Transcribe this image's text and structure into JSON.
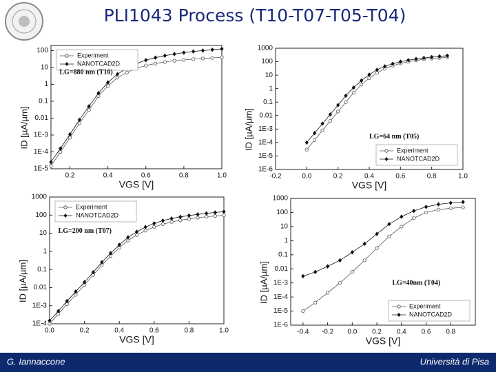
{
  "slide": {
    "title": "PLI1043 Process  (T10-T07-T05-T04)",
    "footer_left": "G. Iannaccone",
    "footer_right": "Università di Pisa"
  },
  "chart_data": [
    {
      "type": "line",
      "ylog": true,
      "ylabel": "ID [µA/µm]",
      "xlabel": "VGS [V]",
      "annotation": "LG=880 nm (T10)",
      "legend": "upper left",
      "xlim": [
        0.1,
        1.0
      ],
      "xticks": [
        0.2,
        0.4,
        0.6,
        0.8,
        {
          "value": 1.0,
          "label": "1.0"
        }
      ],
      "ylim": [
        1e-05,
        200
      ],
      "yticks": [
        {
          "value": 1e-05,
          "label": "1E-5"
        },
        {
          "value": 0.0001,
          "label": "1E-4"
        },
        {
          "value": 0.001,
          "label": "1E-3"
        },
        0.01,
        0.1,
        1,
        10,
        100
      ],
      "x": [
        0.1,
        0.15,
        0.2,
        0.25,
        0.3,
        0.35,
        0.4,
        0.45,
        0.5,
        0.55,
        0.6,
        0.65,
        0.7,
        0.75,
        0.8,
        0.85,
        0.9,
        0.95,
        1.0
      ],
      "series": [
        {
          "name": "Experiment",
          "color": "#555555",
          "marker": "open-circle",
          "values": [
            1.5e-05,
            0.0001,
            0.0007,
            0.005,
            0.03,
            0.2,
            0.8,
            2.5,
            5,
            9,
            13,
            17,
            21,
            25,
            28,
            31,
            34,
            37,
            40
          ]
        },
        {
          "name": "NANOTCAD2D",
          "color": "#111111",
          "marker": "diamond",
          "values": [
            2.5e-05,
            0.00016,
            0.0011,
            0.008,
            0.05,
            0.3,
            1.3,
            4,
            9,
            17,
            27,
            38,
            50,
            62,
            75,
            88,
            100,
            112,
            125
          ]
        }
      ]
    },
    {
      "type": "line",
      "ylog": true,
      "ylabel": "ID [µA/µm]",
      "xlabel": "VGS [V]",
      "annotation": "LG=64 nm (T05)",
      "legend": "lower right",
      "xlim": [
        -0.2,
        1.0
      ],
      "xticks": [
        -0.2,
        {
          "value": 0,
          "label": "0.0"
        },
        0.2,
        0.4,
        0.6,
        0.8,
        {
          "value": 1.0,
          "label": "1.0"
        }
      ],
      "ylim": [
        1e-06,
        1000
      ],
      "yticks": [
        {
          "value": 1e-06,
          "label": "1E-6"
        },
        {
          "value": 1e-05,
          "label": "1E-5"
        },
        {
          "value": 0.0001,
          "label": "1E-4"
        },
        {
          "value": 0.001,
          "label": "1E-3"
        },
        0.01,
        0.1,
        1,
        10,
        100,
        1000
      ],
      "x": [
        0.0,
        0.05,
        0.1,
        0.15,
        0.2,
        0.25,
        0.3,
        0.35,
        0.4,
        0.45,
        0.5,
        0.55,
        0.6,
        0.65,
        0.7,
        0.75,
        0.8,
        0.85,
        0.9
      ],
      "series": [
        {
          "name": "Experiment",
          "color": "#555555",
          "marker": "open-circle",
          "values": [
            3e-05,
            0.00015,
            0.0008,
            0.004,
            0.02,
            0.1,
            0.5,
            2,
            6,
            15,
            30,
            50,
            75,
            100,
            125,
            150,
            170,
            190,
            210
          ]
        },
        {
          "name": "NANOTCAD2D",
          "color": "#111111",
          "marker": "diamond",
          "values": [
            0.0001,
            0.0005,
            0.0025,
            0.012,
            0.06,
            0.3,
            1.2,
            4,
            11,
            25,
            45,
            70,
            100,
            130,
            160,
            190,
            220,
            250,
            280
          ]
        }
      ]
    },
    {
      "type": "line",
      "ylog": true,
      "ylabel": "ID [µA/µm]",
      "xlabel": "VGS [V]",
      "annotation": "LG=200 nm (T07)",
      "legend": "upper left",
      "xlim": [
        0.0,
        1.0
      ],
      "xticks": [
        {
          "value": 0,
          "label": "0.0"
        },
        0.2,
        0.4,
        0.6,
        0.8,
        {
          "value": 1.0,
          "label": "1.0"
        }
      ],
      "ylim": [
        0.0001,
        1000
      ],
      "yticks": [
        {
          "value": 0.0001,
          "label": "1E-4"
        },
        {
          "value": 0.001,
          "label": "1E-3"
        },
        0.01,
        0.1,
        1,
        10,
        100,
        1000
      ],
      "x": [
        0.0,
        0.05,
        0.1,
        0.15,
        0.2,
        0.25,
        0.3,
        0.35,
        0.4,
        0.45,
        0.5,
        0.55,
        0.6,
        0.65,
        0.7,
        0.75,
        0.8,
        0.85,
        0.9,
        0.95,
        1.0
      ],
      "series": [
        {
          "name": "Experiment",
          "color": "#555555",
          "marker": "open-circle",
          "values": [
            0.0001,
            0.00035,
            0.0012,
            0.004,
            0.014,
            0.05,
            0.17,
            0.55,
            1.6,
            4,
            8,
            14,
            22,
            32,
            42,
            52,
            62,
            72,
            82,
            90,
            98
          ]
        },
        {
          "name": "NANOTCAD2D",
          "color": "#111111",
          "marker": "diamond",
          "values": [
            0.00015,
            0.0005,
            0.0018,
            0.006,
            0.02,
            0.07,
            0.25,
            0.8,
            2.3,
            6,
            12,
            22,
            35,
            50,
            65,
            80,
            95,
            110,
            125,
            140,
            155
          ]
        }
      ]
    },
    {
      "type": "line",
      "ylog": true,
      "ylabel": "ID [µA/µm]",
      "xlabel": "VGS [V]",
      "annotation": "LG=40nm (T04)",
      "legend": "lower right",
      "xlim": [
        -0.5,
        1.0
      ],
      "xticks": [
        -0.4,
        -0.2,
        {
          "value": 0,
          "label": "0.0"
        },
        0.2,
        0.4,
        0.6,
        0.8
      ],
      "ylim": [
        1e-06,
        1000
      ],
      "yticks": [
        {
          "value": 1e-06,
          "label": "1E-6"
        },
        {
          "value": 1e-05,
          "label": "1E-5"
        },
        {
          "value": 0.0001,
          "label": "1E-4"
        },
        {
          "value": 0.001,
          "label": "1E-3"
        },
        0.01,
        0.1,
        1,
        10,
        100,
        1000
      ],
      "x": [
        -0.4,
        -0.3,
        -0.2,
        -0.1,
        0.0,
        0.1,
        0.2,
        0.3,
        0.4,
        0.5,
        0.6,
        0.7,
        0.8,
        0.9
      ],
      "series": [
        {
          "name": "Experiment",
          "color": "#555555",
          "marker": "open-circle",
          "values": [
            1e-05,
            4e-05,
            0.0002,
            0.001,
            0.006,
            0.04,
            0.3,
            2,
            10,
            40,
            100,
            160,
            200,
            230
          ]
        },
        {
          "name": "NANOTCAD2D",
          "color": "#111111",
          "marker": "diamond",
          "values": [
            0.003,
            0.006,
            0.015,
            0.04,
            0.15,
            0.6,
            3,
            15,
            50,
            130,
            250,
            380,
            480,
            560
          ]
        }
      ]
    }
  ]
}
